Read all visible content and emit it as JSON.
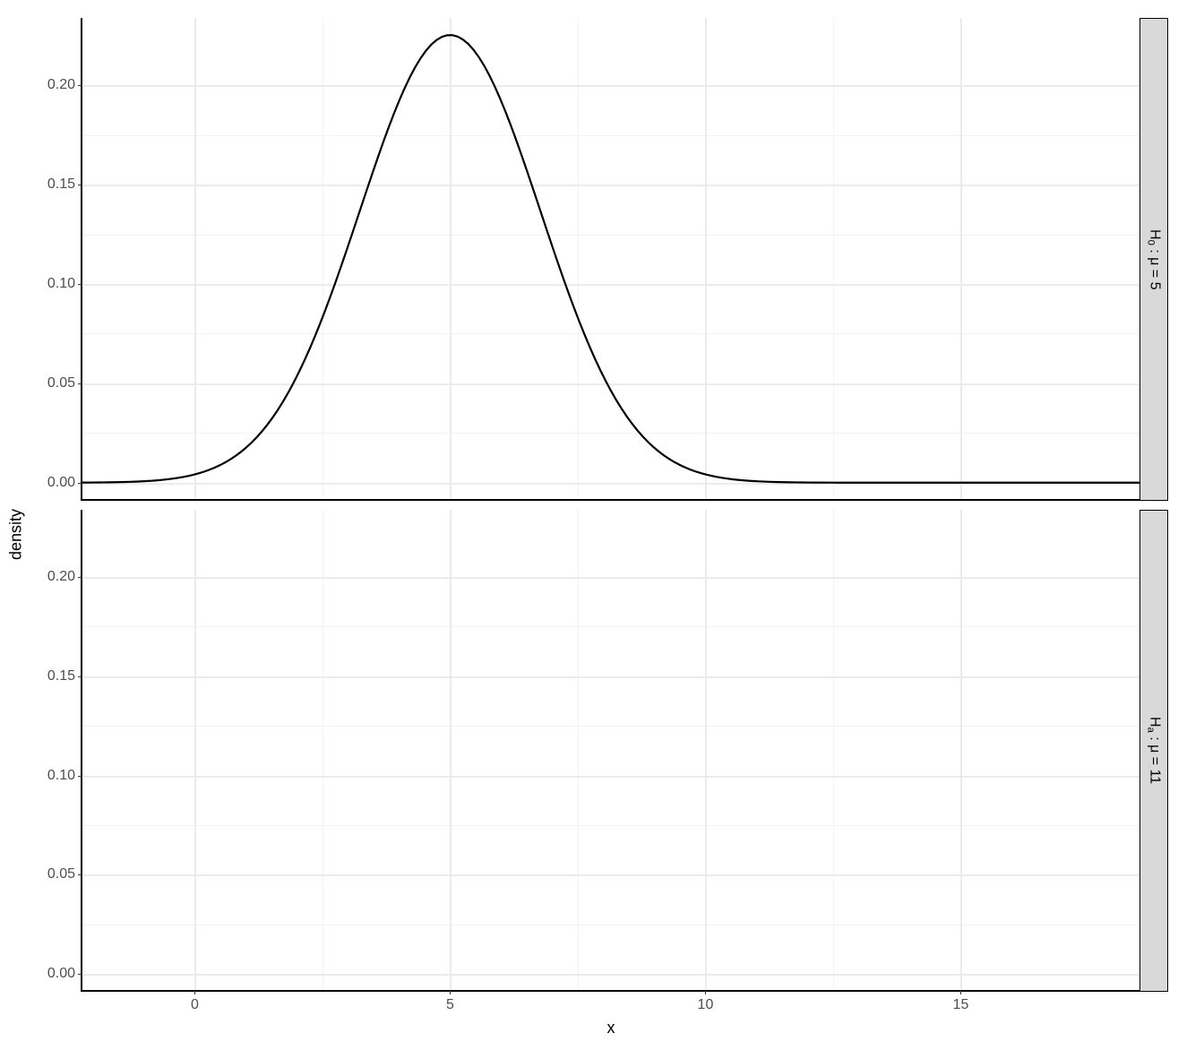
{
  "chart": {
    "type": "line",
    "y_axis_title": "density",
    "x_axis_title": "x",
    "background_color": "#ffffff",
    "grid_major_color": "#ebebeb",
    "grid_minor_color": "#f3f3f3",
    "axis_line_color": "#000000",
    "tick_label_color": "#4d4d4d",
    "tick_label_fontsize": 16,
    "axis_title_fontsize": 18,
    "strip_background": "#d9d9d9",
    "strip_text_color": "#000000",
    "strip_fontsize": 16,
    "line_color": "#000000",
    "line_width": 2.2,
    "x_range": [
      -2.2,
      18.5
    ],
    "y_range": [
      -0.008,
      0.234
    ],
    "x_ticks": [
      0,
      5,
      10,
      15
    ],
    "y_ticks": [
      0.0,
      0.05,
      0.1,
      0.15,
      0.2
    ],
    "y_tick_labels": [
      "0.00",
      "0.05",
      "0.10",
      "0.15",
      "0.20"
    ],
    "panels": [
      {
        "strip_label_html": "H<sub>0</sub> : μ = 5",
        "strip_label_plain": "H0 : mu = 5",
        "curve": {
          "type": "normal",
          "mean": 5,
          "sd": 1.77,
          "x_from": -2.2,
          "x_to": 18.5,
          "steps": 200
        }
      },
      {
        "strip_label_html": "H<sub>a</sub> : μ = 11",
        "strip_label_plain": "Ha : mu = 11",
        "curve": null
      }
    ]
  }
}
